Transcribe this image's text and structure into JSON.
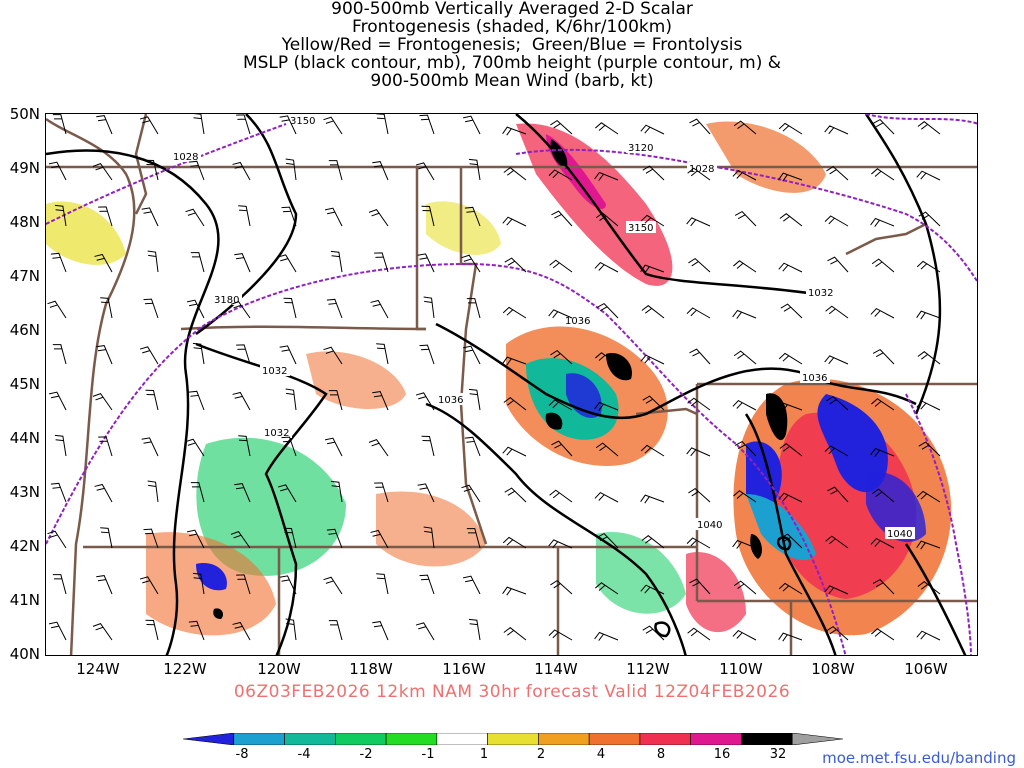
{
  "title": {
    "line1": "900-500mb Vertically Averaged 2-D Scalar",
    "line2": "Frontogenesis (shaded, K/6hr/100km)",
    "line3": "Yellow/Red = Frontogenesis;  Green/Blue = Frontolysis",
    "line4": "MSLP (black contour, mb), 700mb height (purple contour, m) &",
    "line5": "900-500mb Mean Wind (barb, kt)"
  },
  "valid_line": "06Z03FEB2026 12km NAM 30hr forecast Valid 12Z04FEB2026",
  "credit": "moe.met.fsu.edu/banding",
  "lat_labels": [
    "50N",
    "49N",
    "48N",
    "47N",
    "46N",
    "45N",
    "44N",
    "43N",
    "42N",
    "41N",
    "40N"
  ],
  "lon_labels": [
    "124W",
    "122W",
    "120W",
    "118W",
    "116W",
    "114W",
    "112W",
    "110W",
    "108W",
    "106W"
  ],
  "contour_labels": {
    "mslp": [
      "1028",
      "1028",
      "1032",
      "1032",
      "1032",
      "1036",
      "1036",
      "1036",
      "1040",
      "1040"
    ],
    "height": [
      "3150",
      "3120",
      "3150",
      "3180"
    ]
  },
  "colorbar": {
    "labels": [
      "-8",
      "-4",
      "-2",
      "-1",
      "1",
      "2",
      "4",
      "8",
      "16",
      "32"
    ],
    "colors": [
      "#2222dd",
      "#1ca0d0",
      "#11b89a",
      "#10cc60",
      "#22dd22",
      "#ffffff",
      "#e8e030",
      "#f0a020",
      "#f07030",
      "#f03050",
      "#e01890",
      "#000000",
      "#a0a0a0"
    ]
  },
  "map_colors": {
    "state_border": "#7a5a4a",
    "mslp": "#000000",
    "height": "#9020c0",
    "barb": "#000000"
  }
}
